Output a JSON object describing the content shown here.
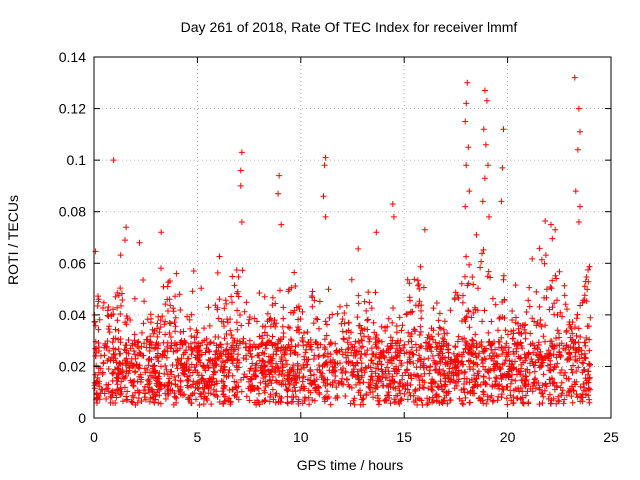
{
  "chart_data": {
    "type": "scatter",
    "title": "Day 261 of 2018, Rate Of TEC Index for receiver lmmf",
    "xlabel": "GPS time / hours",
    "ylabel": "ROTI / TECUs",
    "xlim": [
      0,
      25
    ],
    "ylim": [
      0,
      0.14
    ],
    "x_ticks": [
      0,
      5,
      10,
      15,
      20,
      25
    ],
    "x_tick_labels": [
      "0",
      "5",
      "10",
      "15",
      "20",
      "25"
    ],
    "y_ticks": [
      0,
      0.02,
      0.04,
      0.06,
      0.08,
      0.1,
      0.12,
      0.14
    ],
    "y_tick_labels": [
      "0",
      "0.02",
      "0.04",
      "0.06",
      "0.08",
      "0.1",
      "0.12",
      "0.14"
    ],
    "grid": true,
    "marker": "plus",
    "color": "#ff0000",
    "data_range": [
      0,
      24
    ],
    "baseline_band": [
      0.005,
      0.03
    ],
    "notable_points": [
      {
        "x": 0.95,
        "y": 0.1
      },
      {
        "x": 1.55,
        "y": 0.074
      },
      {
        "x": 1.5,
        "y": 0.069
      },
      {
        "x": 2.2,
        "y": 0.068
      },
      {
        "x": 3.25,
        "y": 0.072
      },
      {
        "x": 7.15,
        "y": 0.103
      },
      {
        "x": 7.1,
        "y": 0.096
      },
      {
        "x": 7.1,
        "y": 0.09
      },
      {
        "x": 7.15,
        "y": 0.076
      },
      {
        "x": 8.95,
        "y": 0.094
      },
      {
        "x": 8.9,
        "y": 0.087
      },
      {
        "x": 9.05,
        "y": 0.075
      },
      {
        "x": 11.2,
        "y": 0.101
      },
      {
        "x": 11.15,
        "y": 0.098
      },
      {
        "x": 11.1,
        "y": 0.086
      },
      {
        "x": 11.2,
        "y": 0.078
      },
      {
        "x": 13.65,
        "y": 0.072
      },
      {
        "x": 14.45,
        "y": 0.083
      },
      {
        "x": 14.5,
        "y": 0.078
      },
      {
        "x": 16.0,
        "y": 0.073
      },
      {
        "x": 18.05,
        "y": 0.13
      },
      {
        "x": 18.0,
        "y": 0.122
      },
      {
        "x": 17.95,
        "y": 0.115
      },
      {
        "x": 18.1,
        "y": 0.105
      },
      {
        "x": 18.0,
        "y": 0.098
      },
      {
        "x": 18.15,
        "y": 0.088
      },
      {
        "x": 17.95,
        "y": 0.082
      },
      {
        "x": 18.9,
        "y": 0.127
      },
      {
        "x": 19.0,
        "y": 0.123
      },
      {
        "x": 18.85,
        "y": 0.112
      },
      {
        "x": 18.95,
        "y": 0.106
      },
      {
        "x": 19.05,
        "y": 0.098
      },
      {
        "x": 18.9,
        "y": 0.093
      },
      {
        "x": 18.8,
        "y": 0.084
      },
      {
        "x": 19.1,
        "y": 0.078
      },
      {
        "x": 19.8,
        "y": 0.112
      },
      {
        "x": 19.75,
        "y": 0.097
      },
      {
        "x": 19.7,
        "y": 0.084
      },
      {
        "x": 22.1,
        "y": 0.075
      },
      {
        "x": 22.3,
        "y": 0.073
      },
      {
        "x": 23.25,
        "y": 0.132
      },
      {
        "x": 23.45,
        "y": 0.12
      },
      {
        "x": 23.5,
        "y": 0.111
      },
      {
        "x": 23.4,
        "y": 0.104
      },
      {
        "x": 23.3,
        "y": 0.088
      },
      {
        "x": 23.5,
        "y": 0.082
      },
      {
        "x": 23.45,
        "y": 0.076
      }
    ]
  }
}
